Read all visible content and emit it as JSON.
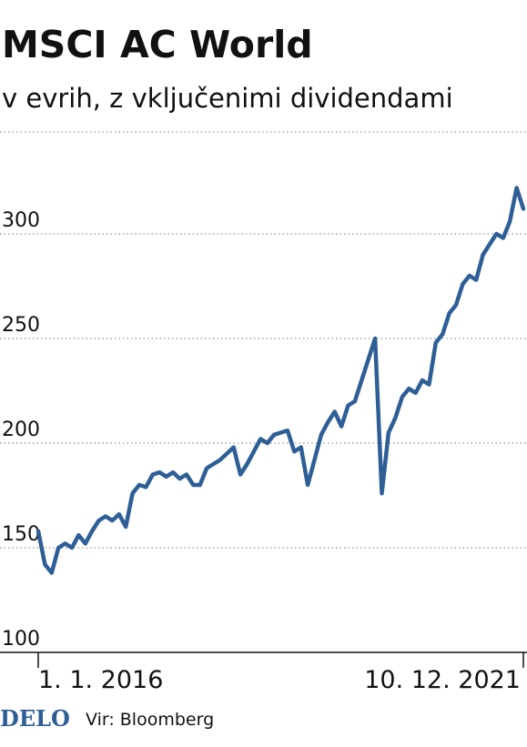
{
  "chart_data": {
    "type": "line",
    "title": "MSCI AC World",
    "subtitle": "v evrih, z vključenimi dividendami",
    "logo": "DELO",
    "source": "Vir: Bloomberg",
    "categories": [
      "1. 1. 2016",
      null,
      null,
      null,
      null,
      null,
      null,
      null,
      null,
      null,
      null,
      null,
      null,
      null,
      null,
      null,
      null,
      null,
      null,
      null,
      null,
      null,
      null,
      null,
      null,
      null,
      null,
      null,
      null,
      null,
      null,
      null,
      null,
      null,
      null,
      null,
      null,
      null,
      null,
      null,
      null,
      null,
      null,
      null,
      null,
      null,
      null,
      null,
      null,
      null,
      null,
      null,
      null,
      null,
      null,
      null,
      null,
      null,
      null,
      null,
      null,
      null,
      null,
      null,
      null,
      null,
      null,
      null,
      null,
      null,
      null,
      null,
      "10. 12. 2021"
    ],
    "series": [
      {
        "name": "MSCI AC World",
        "color": "#2e5e96",
        "values": [
          158,
          142,
          138,
          150,
          152,
          150,
          156,
          152,
          158,
          163,
          165,
          163,
          166,
          160,
          176,
          180,
          179,
          185,
          186,
          184,
          186,
          183,
          185,
          180,
          180,
          188,
          190,
          192,
          195,
          198,
          185,
          190,
          196,
          202,
          200,
          204,
          205,
          206,
          196,
          198,
          180,
          192,
          204,
          210,
          215,
          208,
          218,
          220,
          230,
          240,
          250,
          176,
          205,
          212,
          222,
          226,
          224,
          230,
          228,
          248,
          252,
          262,
          266,
          276,
          280,
          278,
          290,
          295,
          300,
          298,
          306,
          322,
          312
        ]
      }
    ],
    "ylim": [
      100,
      350
    ],
    "yticks": [
      100,
      150,
      200,
      250,
      300
    ],
    "grid": true
  }
}
